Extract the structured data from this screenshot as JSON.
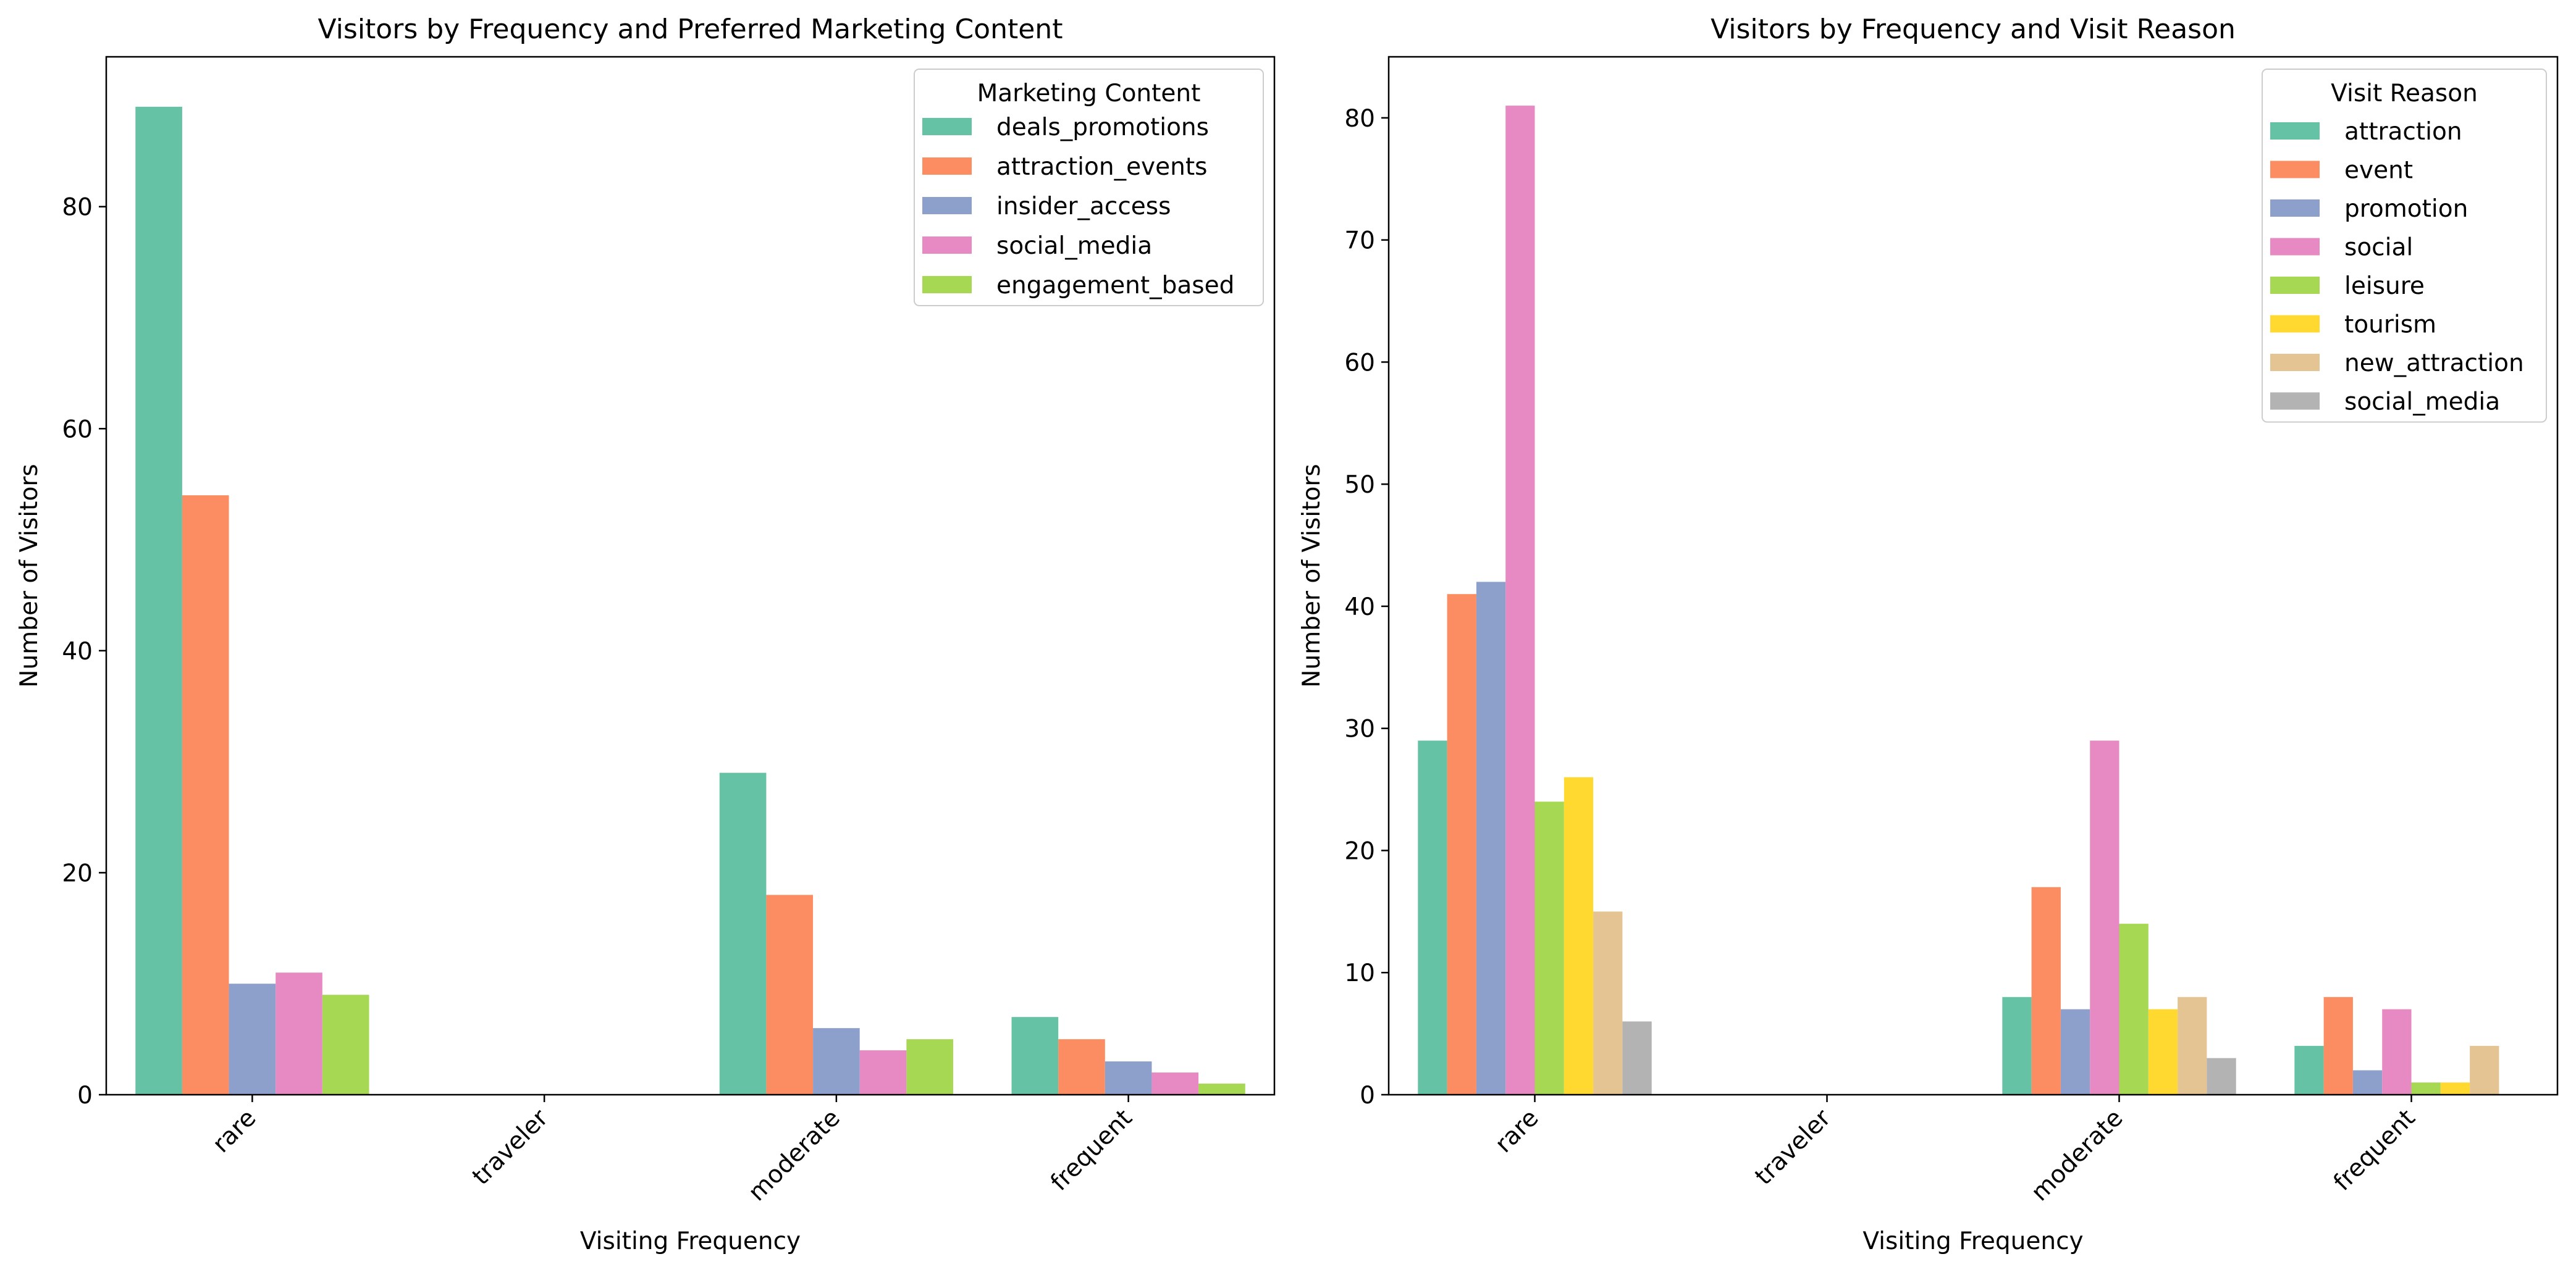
{
  "chart_data": [
    {
      "type": "bar",
      "title": "Visitors by Frequency and Preferred Marketing Content",
      "xlabel": "Visiting Frequency",
      "ylabel": "Number of Visitors",
      "categories": [
        "rare",
        "traveler",
        "moderate",
        "frequent"
      ],
      "ylim": [
        0,
        93.5
      ],
      "yticks": [
        0,
        20,
        40,
        60,
        80
      ],
      "grid": false,
      "legend": {
        "title": "Marketing Content",
        "placement": "top-right"
      },
      "series": [
        {
          "name": "deals_promotions",
          "color": "#66c2a5",
          "values": [
            89,
            0,
            29,
            7
          ]
        },
        {
          "name": "attraction_events",
          "color": "#fc8d62",
          "values": [
            54,
            0,
            18,
            5
          ]
        },
        {
          "name": "insider_access",
          "color": "#8da0cb",
          "values": [
            10,
            0,
            6,
            3
          ]
        },
        {
          "name": "social_media",
          "color": "#e78ac3",
          "values": [
            11,
            0,
            4,
            2
          ]
        },
        {
          "name": "engagement_based",
          "color": "#a6d854",
          "values": [
            9,
            0,
            5,
            1
          ]
        }
      ]
    },
    {
      "type": "bar",
      "title": "Visitors by Frequency and Visit Reason",
      "xlabel": "Visiting Frequency",
      "ylabel": "Number of Visitors",
      "categories": [
        "rare",
        "traveler",
        "moderate",
        "frequent"
      ],
      "ylim": [
        0,
        85
      ],
      "yticks": [
        0,
        10,
        20,
        30,
        40,
        50,
        60,
        70,
        80
      ],
      "grid": false,
      "legend": {
        "title": "Visit Reason",
        "placement": "top-right"
      },
      "series": [
        {
          "name": "attraction",
          "color": "#66c2a5",
          "values": [
            29,
            0,
            8,
            4
          ]
        },
        {
          "name": "event",
          "color": "#fc8d62",
          "values": [
            41,
            0,
            17,
            8
          ]
        },
        {
          "name": "promotion",
          "color": "#8da0cb",
          "values": [
            42,
            0,
            7,
            2
          ]
        },
        {
          "name": "social",
          "color": "#e78ac3",
          "values": [
            81,
            0,
            29,
            7
          ]
        },
        {
          "name": "leisure",
          "color": "#a6d854",
          "values": [
            24,
            0,
            14,
            1
          ]
        },
        {
          "name": "tourism",
          "color": "#ffd92f",
          "values": [
            26,
            0,
            7,
            1
          ]
        },
        {
          "name": "new_attraction",
          "color": "#e5c494",
          "values": [
            15,
            0,
            8,
            4
          ]
        },
        {
          "name": "social_media",
          "color": "#b3b3b3",
          "values": [
            6,
            0,
            3,
            0
          ]
        }
      ]
    }
  ]
}
